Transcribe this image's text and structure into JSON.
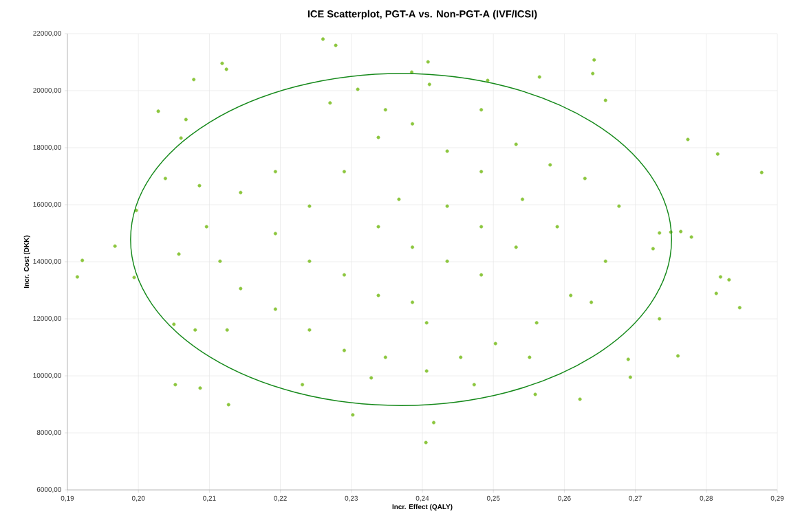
{
  "chart_data": {
    "type": "scatter",
    "title": "ICE Scatterplot, PGT-A vs. Non-PGT-A (IVF/ICSI)",
    "xlabel": "Incr. Effect (QALY)",
    "ylabel": "Incr. Cost (DKK)",
    "xlim": [
      0.19,
      0.29
    ],
    "ylim": [
      6000,
      22000
    ],
    "xticks": [
      {
        "value": 0.19,
        "label": "0,19"
      },
      {
        "value": 0.2,
        "label": "0,20"
      },
      {
        "value": 0.21,
        "label": "0,21"
      },
      {
        "value": 0.22,
        "label": "0,22"
      },
      {
        "value": 0.23,
        "label": "0,23"
      },
      {
        "value": 0.24,
        "label": "0,24"
      },
      {
        "value": 0.25,
        "label": "0,25"
      },
      {
        "value": 0.26,
        "label": "0,26"
      },
      {
        "value": 0.27,
        "label": "0,27"
      },
      {
        "value": 0.28,
        "label": "0,28"
      },
      {
        "value": 0.29,
        "label": "0,29"
      }
    ],
    "yticks": [
      {
        "value": 6000,
        "label": "6000,00"
      },
      {
        "value": 8000,
        "label": "8000,00"
      },
      {
        "value": 10000,
        "label": "10000,00"
      },
      {
        "value": 12000,
        "label": "12000,00"
      },
      {
        "value": 14000,
        "label": "14000,00"
      },
      {
        "value": 16000,
        "label": "16000,00"
      },
      {
        "value": 18000,
        "label": "18000,00"
      },
      {
        "value": 20000,
        "label": "20000,00"
      },
      {
        "value": 22000,
        "label": "22000,00"
      }
    ],
    "grid": true,
    "series": [
      {
        "type": "scatter",
        "color": "#8cc63e",
        "x": [
          0.1914,
          0.1921,
          0.1967,
          0.226,
          0.2278,
          0.2408,
          0.2642,
          0.2118,
          0.2124,
          0.2078,
          0.2878,
          0.2816,
          0.2774,
          0.2847,
          0.2832,
          0.282,
          0.2814,
          0.276,
          0.2734,
          0.2693,
          0.269,
          0.2405,
          0.2416,
          0.2302,
          0.2127,
          0.2052,
          0.2087,
          0.2622,
          0.2559,
          0.205,
          0.208,
          0.1994,
          0.1997,
          0.2028,
          0.206,
          0.2067,
          0.2385,
          0.241,
          0.2492,
          0.2565,
          0.264,
          0.2658,
          0.275,
          0.2764,
          0.2779,
          0.2734,
          0.2725,
          0.2096,
          0.2144,
          0.2193,
          0.2241,
          0.229,
          0.2338,
          0.2386,
          0.2435,
          0.2483,
          0.2532,
          0.258,
          0.2629,
          0.2677,
          0.2658,
          0.2609,
          0.2561,
          0.2503,
          0.2454,
          0.2406,
          0.2348,
          0.229,
          0.2241,
          0.2193,
          0.2144,
          0.2115,
          0.2338,
          0.2386,
          0.2435,
          0.2483,
          0.2532,
          0.229,
          0.2338,
          0.2386,
          0.2435,
          0.2483,
          0.2241,
          0.2193,
          0.227,
          0.2309,
          0.2348,
          0.2483,
          0.2541,
          0.259,
          0.2638,
          0.2551,
          0.2231,
          0.2328,
          0.2473,
          0.2125,
          0.2057,
          0.2038,
          0.2086,
          0.2406,
          0.2367
        ],
        "values": [
          13470,
          14050,
          14550,
          21810,
          21590,
          21010,
          21080,
          20960,
          20750,
          20390,
          17130,
          17780,
          18290,
          12390,
          13370,
          13470,
          12890,
          10700,
          12000,
          9950,
          10580,
          7660,
          8360,
          8630,
          8990,
          9690,
          9570,
          9180,
          9350,
          11810,
          11610,
          13450,
          15800,
          19280,
          18340,
          18990,
          20650,
          20220,
          20360,
          20480,
          20600,
          19660,
          15040,
          15060,
          14870,
          15010,
          14460,
          15230,
          16430,
          17160,
          15950,
          17160,
          18360,
          18840,
          17880,
          17160,
          18120,
          17400,
          16920,
          15950,
          14020,
          12820,
          11860,
          11130,
          10650,
          10170,
          10650,
          10890,
          11610,
          12340,
          13060,
          14020,
          15230,
          14510,
          14020,
          15230,
          14510,
          13540,
          12820,
          12580,
          15950,
          13540,
          14020,
          14990,
          19570,
          20050,
          19330,
          19330,
          16190,
          15230,
          12580,
          10650,
          9690,
          9930,
          9690,
          11610,
          14270,
          16920,
          16670,
          11860,
          16190
        ]
      }
    ]
  }
}
